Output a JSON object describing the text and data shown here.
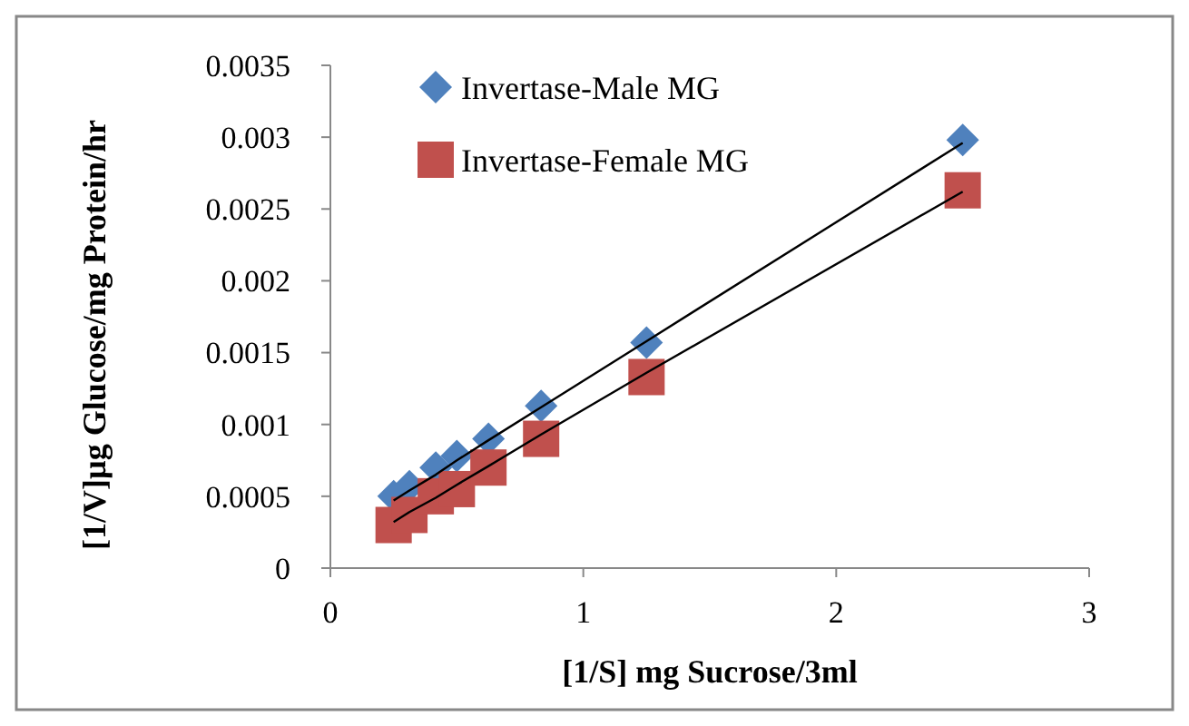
{
  "chart_data": {
    "type": "scatter",
    "xlabel": "[1/S] mg Sucrose/3ml",
    "ylabel": "[1/V]µg Glucose/mg Protein/hr",
    "x": [
      0.25,
      0.3125,
      0.4167,
      0.5,
      0.625,
      0.8333,
      1.25,
      2.5
    ],
    "series": [
      {
        "name": "Invertase-Male MG",
        "color": "#4f81bd",
        "marker": "diamond",
        "values": [
          0.0005,
          0.00057,
          0.0007,
          0.00078,
          0.0009,
          0.00113,
          0.00157,
          0.00298
        ]
      },
      {
        "name": "Invertase-Female MG",
        "color": "#c0504d",
        "marker": "square",
        "values": [
          0.0003,
          0.00037,
          0.0005,
          0.00055,
          0.0007,
          0.0009,
          0.00133,
          0.00263
        ]
      },
      {
        "type": "line",
        "color": "#000000",
        "values": [
          0.00047,
          0.00054,
          0.00065,
          0.00075,
          0.00089,
          0.00112,
          0.00158,
          0.00296
        ]
      },
      {
        "type": "line",
        "color": "#000000",
        "values": [
          0.00032,
          0.00039,
          0.00049,
          0.00058,
          0.00071,
          0.00093,
          0.00136,
          0.00262
        ]
      }
    ],
    "xlim": [
      0,
      3
    ],
    "xticks": [
      0,
      1,
      2,
      3
    ],
    "ylim": [
      0,
      0.0035
    ],
    "yticks": [
      0,
      0.0005,
      0.001,
      0.0015,
      0.002,
      0.0025,
      0.003,
      0.0035
    ],
    "grid": false,
    "legend": "top left"
  }
}
